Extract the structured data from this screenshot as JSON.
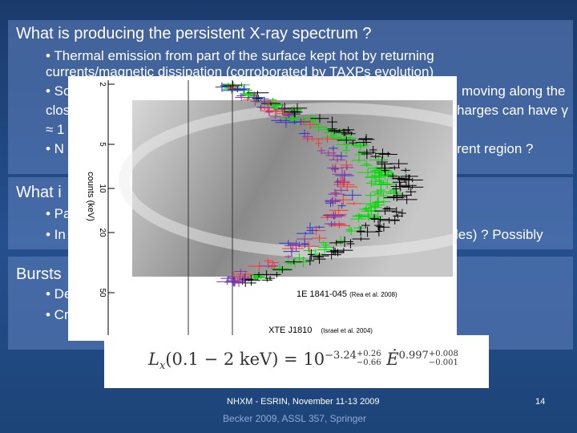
{
  "slide": {
    "heading1": "What is producing the persistent  X-ray spectrum ?",
    "bullets1": [
      "• Thermal emission from part of the surface kept hot by returning",
      "currents/magnetic dissipation (corroborated by TAXPs evolution)",
      "• So",
      "moving along the",
      "clos",
      "harges can have γ",
      "≈ 1",
      "• N",
      "rent region ?"
    ],
    "heading2": "What i",
    "bullets2": [
      "• Pa",
      "• In",
      "les) ? Possibly"
    ],
    "heading3": "Bursts",
    "bullets3": [
      "• De",
      "• Cr"
    ],
    "plot": {
      "y_label": "counts (keV)",
      "ticks": [
        "2",
        "5",
        "10",
        "20",
        "50"
      ],
      "label1": "1E 1841-045",
      "cite1": "(Rea et al. 2008)",
      "label2": "XTE J1810",
      "cite2": "(Israel et al. 2004)"
    },
    "formula": {
      "lhs": "L",
      "sub": "x",
      "arg": "(0.1 − 2 keV) = 10",
      "exp": "−3.24",
      "exp_up": "+0.26",
      "exp_dn": "−0.66",
      "edot": "Ė",
      "pow": "0.997",
      "pow_up": "+0.008",
      "pow_dn": "−0.001"
    },
    "footer": "NHXM - ESRIN, November 11-13 2009",
    "page": "14",
    "citation": "Becker  2009,  ASSL 357, Springer"
  }
}
